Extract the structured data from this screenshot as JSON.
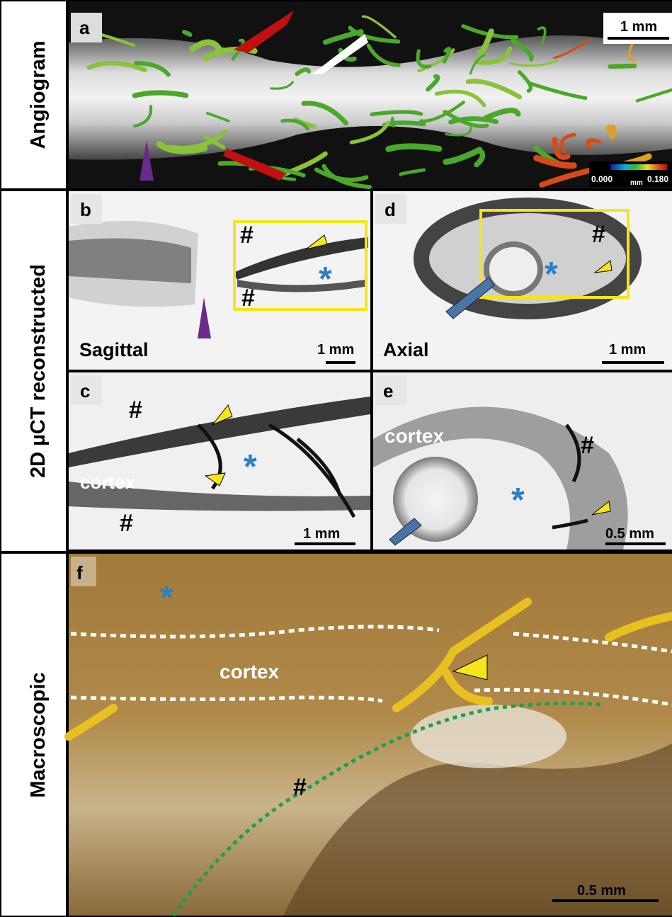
{
  "rows": [
    {
      "label": "Angiogram"
    },
    {
      "label": "2D µCT reconstructed"
    },
    {
      "label": "Macroscopic"
    }
  ],
  "panels": [
    {
      "letter": "a",
      "scale_bar": "1 mm",
      "colorbar": {
        "min": "0.000",
        "unit": "mm",
        "max": "0.180"
      }
    },
    {
      "letter": "b",
      "view": "Sagittal",
      "scale_bar": "1 mm",
      "annotations": [
        "#",
        "#",
        "*"
      ]
    },
    {
      "letter": "c",
      "scale_bar": "1 mm",
      "annotations": [
        "#",
        "#",
        "*",
        "cortex"
      ]
    },
    {
      "letter": "d",
      "view": "Axial",
      "scale_bar": "1 mm",
      "annotations": [
        "#",
        "*"
      ]
    },
    {
      "letter": "e",
      "scale_bar": "0.5 mm",
      "annotations": [
        "cortex",
        "#",
        "*"
      ]
    },
    {
      "letter": "f",
      "scale_bar": "0.5 mm",
      "annotations": [
        "*",
        "cortex",
        "#"
      ]
    }
  ]
}
